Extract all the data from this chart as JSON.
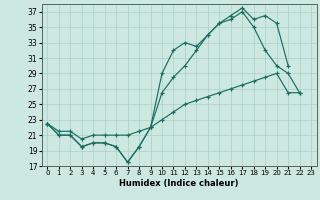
{
  "xlabel": "Humidex (Indice chaleur)",
  "bg_color": "#cce8e0",
  "grid_color": "#aacfc8",
  "line_color": "#1a6e60",
  "xlim": [
    -0.5,
    23.5
  ],
  "ylim": [
    17,
    38
  ],
  "yticks": [
    17,
    19,
    21,
    23,
    25,
    27,
    29,
    31,
    33,
    35,
    37
  ],
  "xticks": [
    0,
    1,
    2,
    3,
    4,
    5,
    6,
    7,
    8,
    9,
    10,
    11,
    12,
    13,
    14,
    15,
    16,
    17,
    18,
    19,
    20,
    21,
    22,
    23
  ],
  "line1_x": [
    0,
    1,
    2,
    3,
    4,
    5,
    6,
    7,
    8,
    9,
    10,
    11,
    12,
    13,
    14,
    15,
    16,
    17,
    18,
    19,
    20,
    21,
    22,
    23
  ],
  "line1_y": [
    22.5,
    21,
    21,
    19.5,
    20,
    20,
    19.5,
    17.5,
    19.5,
    22,
    29,
    32,
    33,
    32.5,
    34,
    35.5,
    36,
    37,
    35,
    32,
    30,
    29,
    26.5,
    null
  ],
  "line2_x": [
    0,
    1,
    2,
    3,
    4,
    5,
    6,
    7,
    8,
    9,
    10,
    11,
    12,
    13,
    14,
    15,
    16,
    17,
    18,
    19,
    20,
    21,
    22,
    23
  ],
  "line2_y": [
    22.5,
    21,
    21,
    19.5,
    20,
    20,
    19.5,
    17.5,
    19.5,
    22,
    26.5,
    28.5,
    30,
    32,
    34,
    35.5,
    36.5,
    37.5,
    36,
    36.5,
    35.5,
    30,
    null,
    null
  ],
  "line3_x": [
    0,
    1,
    2,
    3,
    4,
    5,
    6,
    7,
    8,
    9,
    10,
    11,
    12,
    13,
    14,
    15,
    16,
    17,
    18,
    19,
    20,
    21,
    22,
    23
  ],
  "line3_y": [
    22.5,
    21.5,
    21.5,
    20.5,
    21,
    21,
    21,
    21,
    21.5,
    22,
    23,
    24,
    25,
    25.5,
    26,
    26.5,
    27,
    27.5,
    28,
    28.5,
    29,
    26.5,
    26.5,
    null
  ]
}
